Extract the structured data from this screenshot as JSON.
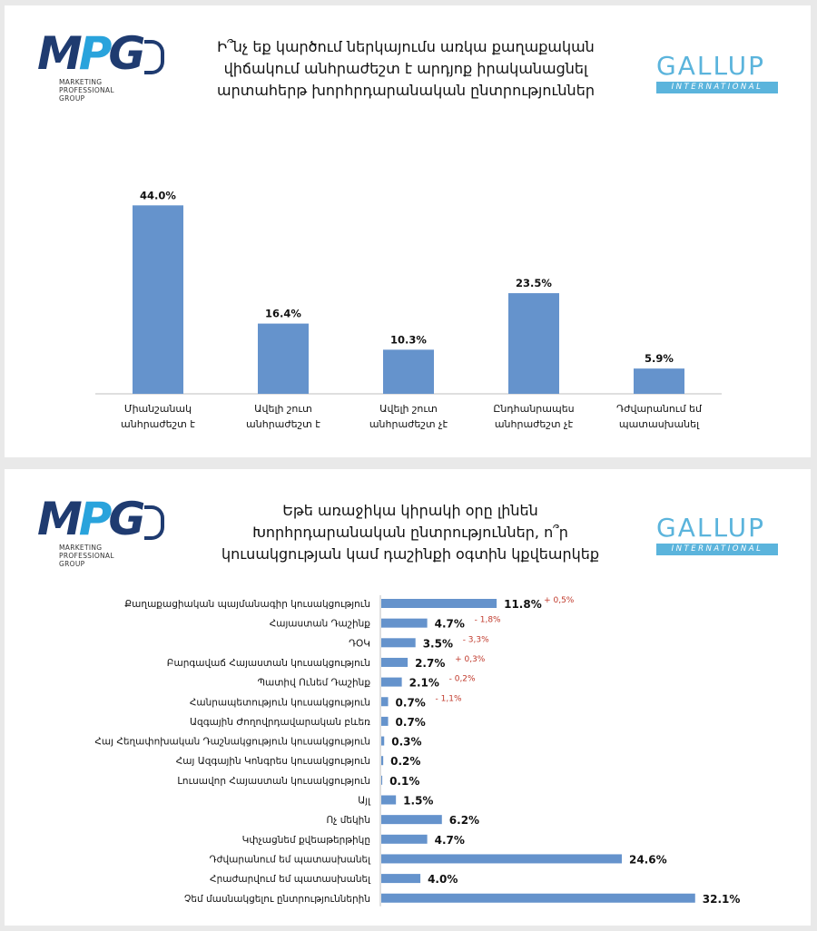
{
  "logo": {
    "letters": [
      "M",
      "P",
      "G"
    ],
    "subtitle": "MARKETING\nPROFESSIONAL\nGROUP"
  },
  "gallup": {
    "top": "GALLUP",
    "bottom": "INTERNATIONAL"
  },
  "colors": {
    "bar": "#6593cc",
    "change": "#c0392b",
    "axis": "#bfbfbf"
  },
  "slide1": {
    "title": "Ի՞նչ եք կարծում ներկայումս առկա քաղաքական վիճակում անհրաժեշտ է արդյոք իրականացնել արտահերթ խորհրդարանական ընտրություններ"
  },
  "slide2": {
    "title": "Եթե առաջիկա կիրակի օրը լինեն Խորհրդարանական ընտրություններ, ո՞ր կուսակցության կամ դաշինքի օգտին կքվեարկեք"
  },
  "chart_data": [
    {
      "type": "bar",
      "categories": [
        [
          "Միանշանակ",
          "անհրաժեշտ է"
        ],
        [
          "Ավելի շուտ",
          "անհրաժեշտ է"
        ],
        [
          "Ավելի շուտ",
          "անհրաժեշտ չէ"
        ],
        [
          "Ընդհանրապես",
          "անհրաժեշտ չէ"
        ],
        [
          "Դժվարանում եմ",
          "պատասխանել"
        ]
      ],
      "values": [
        44.0,
        16.4,
        10.3,
        23.5,
        5.9
      ],
      "labels": [
        "44.0%",
        "16.4%",
        "10.3%",
        "23.5%",
        "5.9%"
      ],
      "ylim": [
        0,
        50
      ]
    },
    {
      "type": "bar",
      "orientation": "horizontal",
      "categories": [
        "Քաղաքացիական պայմանագիր կուսակցություն",
        "Հայաստան Դաշինք",
        "ԴՕԿ",
        "Բարգավաճ Հայաստան կուսակցություն",
        "Պատիվ Ունեմ Դաշինք",
        "Հանրապետություն կուսակցություն",
        "Ազգային Ժողովրդավարական բևեռ",
        "Հայ Հեղափոխական Դաշնակցություն կուսակցություն",
        "Հայ Ազգային Կոնգրես կուսակցություն",
        "Լուսավոր Հայաստան կուսակցություն",
        "Այլ",
        "Ոչ մեկին",
        "Կփչացնեմ քվեաթերթիկը",
        "Դժվարանում եմ պատասխանել",
        "Հրաժարվում եմ պատասխանել",
        "Չեմ մասնակցելու ընտրություններին"
      ],
      "values": [
        11.8,
        4.7,
        3.5,
        2.7,
        2.1,
        0.7,
        0.7,
        0.3,
        0.2,
        0.1,
        1.5,
        6.2,
        4.7,
        24.6,
        4.0,
        32.1
      ],
      "labels": [
        "11.8%",
        "4.7%",
        "3.5%",
        "2.7%",
        "2.1%",
        "0.7%",
        "0.7%",
        "0.3%",
        "0.2%",
        "0.1%",
        "1.5%",
        "6.2%",
        "4.7%",
        "24.6%",
        "4.0%",
        "32.1%"
      ],
      "changes": [
        "+ 0,5%",
        "- 1,8%",
        "- 3,3%",
        "+ 0,3%",
        "- 0,2%",
        "- 1,1%",
        "",
        "",
        "",
        "",
        "",
        "",
        "",
        "",
        "",
        ""
      ],
      "xlim": [
        0,
        35
      ]
    }
  ]
}
